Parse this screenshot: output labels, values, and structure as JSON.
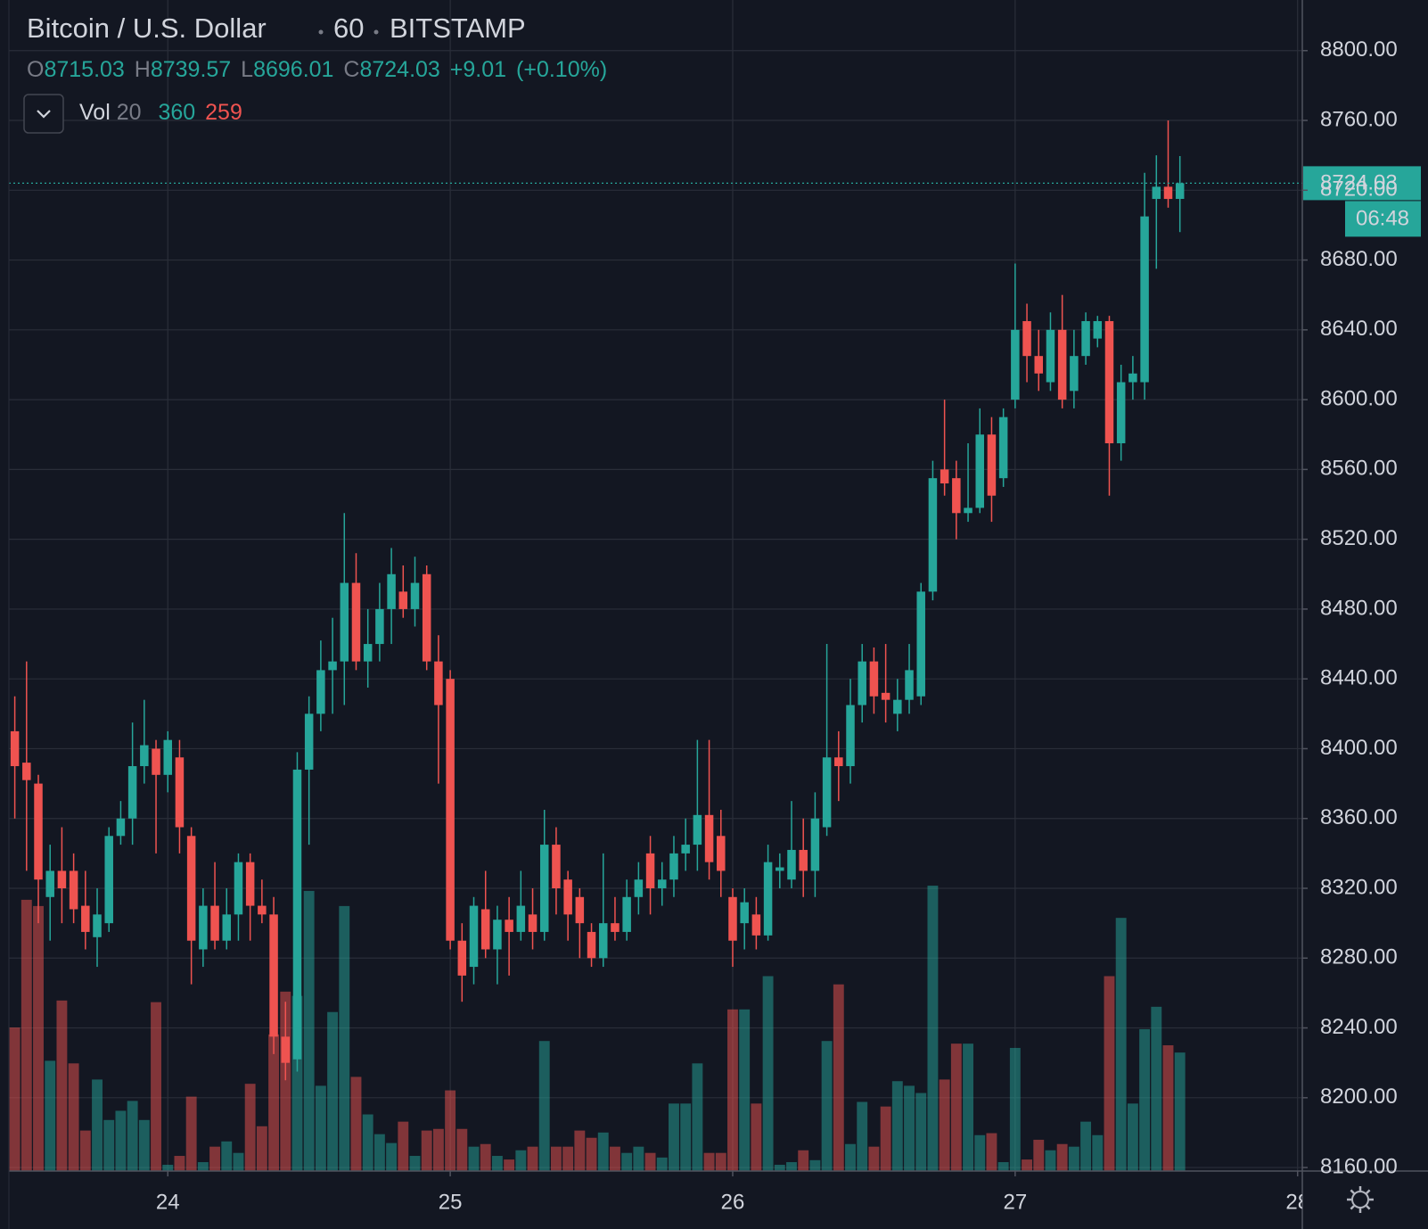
{
  "chart_data": {
    "type": "candlestick",
    "title": "Bitcoin / U.S. Dollar",
    "interval": "60",
    "exchange": "BITSTAMP",
    "ohlc_labels": [
      "O",
      "H",
      "L",
      "C"
    ],
    "change": {
      "value": 9.01,
      "label": "+9.01"
    },
    "change_percent": {
      "value": 0.1,
      "label": "(+0.10%)"
    },
    "volume_label": "Vol",
    "volume_ma_length": 20,
    "volume_ma": 259,
    "countdown": "06:48",
    "up_color": "#26a69a",
    "down_color": "#ef5350",
    "grid": true,
    "xlim": [
      -0.5,
      109.4
    ],
    "xticks": [
      {
        "value": 13,
        "label": "24"
      },
      {
        "value": 37,
        "label": "25"
      },
      {
        "value": 61,
        "label": "26"
      },
      {
        "value": 85,
        "label": "27"
      },
      {
        "value": 109,
        "label": "28"
      }
    ],
    "ylim": [
      8158,
      8829
    ],
    "yticks": [
      {
        "value": 8160,
        "label": "8160.00"
      },
      {
        "value": 8200,
        "label": "8200.00"
      },
      {
        "value": 8240,
        "label": "8240.00"
      },
      {
        "value": 8280,
        "label": "8280.00"
      },
      {
        "value": 8320,
        "label": "8320.00"
      },
      {
        "value": 8360,
        "label": "8360.00"
      },
      {
        "value": 8400,
        "label": "8400.00"
      },
      {
        "value": 8440,
        "label": "8440.00"
      },
      {
        "value": 8480,
        "label": "8480.00"
      },
      {
        "value": 8520,
        "label": "8520.00"
      },
      {
        "value": 8560,
        "label": "8560.00"
      },
      {
        "value": 8600,
        "label": "8600.00"
      },
      {
        "value": 8640,
        "label": "8640.00"
      },
      {
        "value": 8680,
        "label": "8680.00"
      },
      {
        "value": 8720,
        "label": "8720.00"
      },
      {
        "value": 8760,
        "label": "8760.00"
      },
      {
        "value": 8800,
        "label": "8800.00"
      }
    ],
    "open": [
      8410,
      8392,
      8380,
      8315,
      8330,
      8330,
      8310,
      8292,
      8300,
      8350,
      8360,
      8390,
      8400,
      8385,
      8395,
      8350,
      8285,
      8310,
      8290,
      8305,
      8335,
      8310,
      8305,
      8235,
      8222,
      8388,
      8420,
      8445,
      8450,
      8495,
      8450,
      8460,
      8480,
      8490,
      8480,
      8500,
      8450,
      8440,
      8290,
      8275,
      8308,
      8285,
      8302,
      8295,
      8305,
      8295,
      8345,
      8325,
      8315,
      8295,
      8280,
      8300,
      8295,
      8315,
      8340,
      8320,
      8325,
      8340,
      8345,
      8362,
      8350,
      8315,
      8300,
      8305,
      8293,
      8330,
      8325,
      8342,
      8330,
      8355,
      8395,
      8390,
      8425,
      8450,
      8432,
      8420,
      8428,
      8430,
      8490,
      8560,
      8555,
      8535,
      8538,
      8580,
      8555,
      8600,
      8645,
      8625,
      8610,
      8640,
      8605,
      8625,
      8635,
      8645,
      8575,
      8610,
      8610,
      8715,
      8722,
      8715.03
    ],
    "high": [
      8430,
      8450,
      8385,
      8345,
      8355,
      8340,
      8330,
      8320,
      8355,
      8370,
      8415,
      8428,
      8405,
      8410,
      8405,
      8355,
      8320,
      8335,
      8320,
      8340,
      8340,
      8325,
      8315,
      8255,
      8398,
      8430,
      8462,
      8475,
      8535,
      8512,
      8480,
      8495,
      8515,
      8505,
      8510,
      8505,
      8465,
      8445,
      8300,
      8315,
      8330,
      8310,
      8315,
      8330,
      8320,
      8365,
      8355,
      8330,
      8320,
      8300,
      8340,
      8315,
      8325,
      8335,
      8350,
      8335,
      8350,
      8360,
      8405,
      8405,
      8365,
      8320,
      8320,
      8315,
      8345,
      8340,
      8370,
      8360,
      8375,
      8460,
      8410,
      8440,
      8460,
      8458,
      8460,
      8440,
      8460,
      8495,
      8565,
      8600,
      8565,
      8575,
      8595,
      8590,
      8595,
      8678,
      8655,
      8640,
      8650,
      8660,
      8640,
      8650,
      8648,
      8648,
      8620,
      8625,
      8730,
      8740,
      8760,
      8739.57
    ],
    "low": [
      8360,
      8330,
      8300,
      8290,
      8300,
      8300,
      8285,
      8275,
      8295,
      8345,
      8345,
      8380,
      8340,
      8375,
      8340,
      8265,
      8275,
      8285,
      8285,
      8290,
      8290,
      8300,
      8225,
      8210,
      8215,
      8345,
      8410,
      8420,
      8425,
      8445,
      8435,
      8450,
      8460,
      8475,
      8470,
      8445,
      8380,
      8285,
      8255,
      8265,
      8280,
      8265,
      8270,
      8290,
      8285,
      8290,
      8305,
      8290,
      8280,
      8275,
      8275,
      8290,
      8290,
      8305,
      8305,
      8310,
      8315,
      8330,
      8330,
      8325,
      8315,
      8275,
      8285,
      8285,
      8290,
      8320,
      8320,
      8315,
      8315,
      8350,
      8370,
      8380,
      8415,
      8420,
      8415,
      8410,
      8420,
      8425,
      8485,
      8545,
      8520,
      8530,
      8535,
      8530,
      8550,
      8595,
      8610,
      8605,
      8605,
      8595,
      8595,
      8620,
      8630,
      8545,
      8565,
      8600,
      8600,
      8675,
      8710,
      8696.01
    ],
    "close": [
      8390,
      8382,
      8325,
      8330,
      8320,
      8308,
      8295,
      8305,
      8350,
      8360,
      8390,
      8402,
      8385,
      8405,
      8355,
      8290,
      8310,
      8290,
      8305,
      8335,
      8310,
      8305,
      8235,
      8220,
      8388,
      8420,
      8445,
      8450,
      8495,
      8450,
      8460,
      8480,
      8500,
      8480,
      8495,
      8450,
      8425,
      8290,
      8270,
      8310,
      8285,
      8302,
      8295,
      8310,
      8295,
      8345,
      8320,
      8305,
      8300,
      8280,
      8300,
      8295,
      8315,
      8325,
      8320,
      8325,
      8340,
      8345,
      8362,
      8335,
      8330,
      8290,
      8312,
      8293,
      8335,
      8332,
      8342,
      8330,
      8360,
      8395,
      8390,
      8425,
      8450,
      8430,
      8428,
      8428,
      8445,
      8490,
      8555,
      8552,
      8535,
      8538,
      8580,
      8545,
      8590,
      8640,
      8625,
      8615,
      8640,
      8600,
      8625,
      8645,
      8645,
      8575,
      8610,
      8615,
      8705,
      8722,
      8715,
      8724.03
    ],
    "volume": [
      436,
      824,
      805,
      335,
      518,
      327,
      123,
      278,
      155,
      183,
      213,
      155,
      513,
      19,
      46,
      226,
      27,
      74,
      90,
      55,
      265,
      136,
      415,
      545,
      532,
      851,
      259,
      483,
      805,
      286,
      172,
      112,
      85,
      150,
      46,
      123,
      128,
      245,
      128,
      74,
      82,
      46,
      35,
      63,
      74,
      395,
      74,
      74,
      123,
      101,
      117,
      74,
      55,
      74,
      55,
      41,
      205,
      205,
      327,
      55,
      55,
      491,
      491,
      205,
      592,
      19,
      27,
      63,
      33,
      395,
      567,
      82,
      210,
      74,
      196,
      273,
      259,
      237,
      867,
      278,
      387,
      387,
      109,
      115,
      27,
      374,
      35,
      95,
      63,
      82,
      74,
      150,
      109,
      592,
      769,
      205,
      431,
      499,
      382,
      360
    ]
  }
}
